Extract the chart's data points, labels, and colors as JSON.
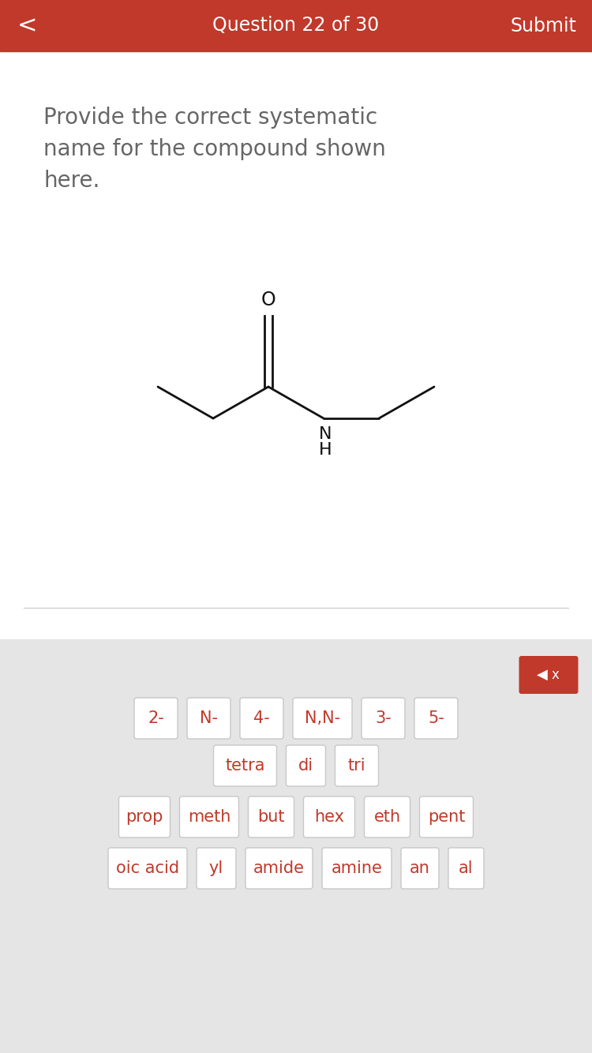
{
  "header_color": "#c0392b",
  "header_text_color": "#ffffff",
  "header_title": "Question 22 of 30",
  "header_submit": "Submit",
  "header_back": "<",
  "question_text_color": "#666666",
  "question_fontsize": 20,
  "bg_white": "#ffffff",
  "bg_gray": "#e5e5e5",
  "divider_color": "#d0d0d0",
  "button_color_red": "#c0392b",
  "button_color_white": "#ffffff",
  "button_text_color_red": "#c0392b",
  "bond_color": "#111111",
  "row1_buttons": [
    "2-",
    "N-",
    "4-",
    "N,N-",
    "3-",
    "5-"
  ],
  "row2_buttons": [
    "tetra",
    "di",
    "tri"
  ],
  "row3_buttons": [
    "prop",
    "meth",
    "but",
    "hex",
    "eth",
    "pent"
  ],
  "row4_buttons": [
    "oic acid",
    "yl",
    "amide",
    "amine",
    "an",
    "al"
  ]
}
